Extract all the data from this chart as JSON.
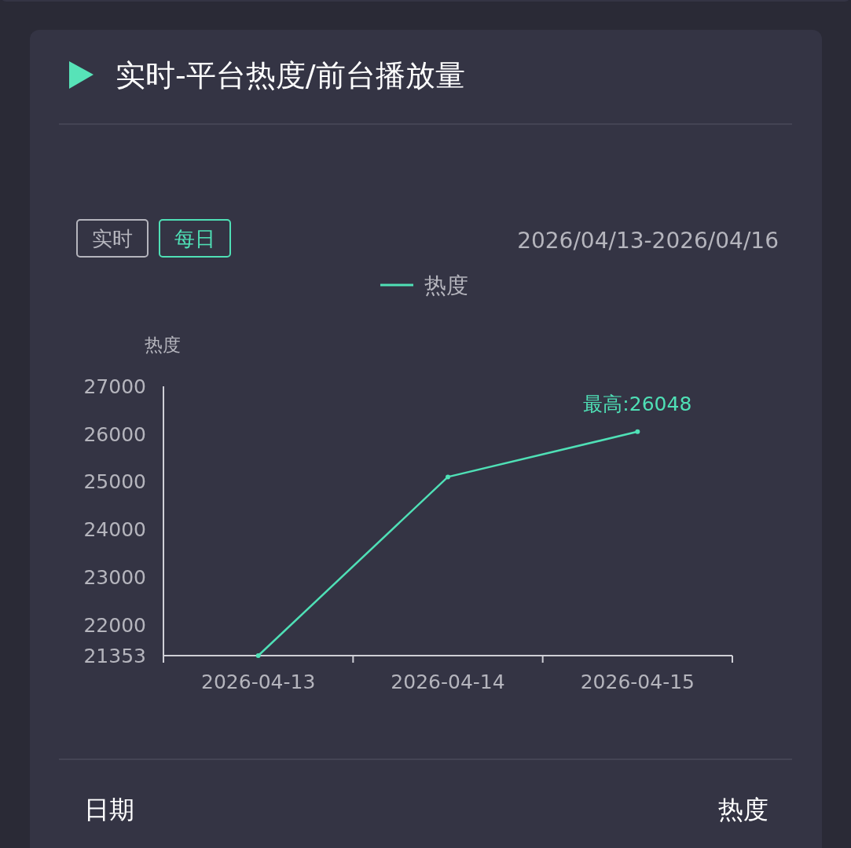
{
  "chart_data": {
    "type": "line",
    "title": "实时-平台热度/前台播放量",
    "ylabel": "热度",
    "categories": [
      "2026-04-13",
      "2026-04-14",
      "2026-04-15"
    ],
    "series": [
      {
        "name": "热度",
        "color": "#4fe0b6",
        "values": [
          21353,
          25100,
          26048
        ]
      }
    ],
    "ylim": [
      21353,
      27000
    ],
    "yticks": [
      21353,
      22000,
      23000,
      24000,
      25000,
      26000,
      27000
    ],
    "grid": false,
    "legend": "top",
    "marker": "circle",
    "line_style": "solid",
    "annotations": [
      {
        "text": "最高:26048",
        "x": "2026-04-15",
        "y": 26048
      },
      "实时",
      "每日",
      "2026/04/13-2026/04/16",
      "日期",
      "热度"
    ]
  }
}
